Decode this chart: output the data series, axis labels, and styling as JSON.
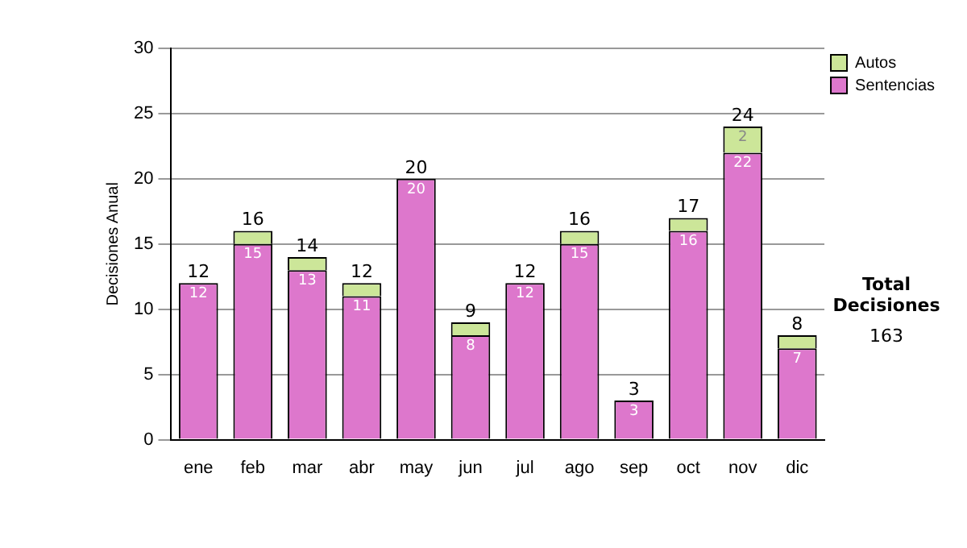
{
  "chart_data": {
    "type": "bar",
    "stacked": true,
    "ylabel": "Decisiones Anual",
    "categories": [
      "ene",
      "feb",
      "mar",
      "abr",
      "may",
      "jun",
      "jul",
      "ago",
      "sep",
      "oct",
      "nov",
      "dic"
    ],
    "series": [
      {
        "name": "Sentencias",
        "color": "#dd77cc",
        "values": [
          12,
          15,
          13,
          11,
          20,
          8,
          12,
          15,
          3,
          16,
          22,
          7
        ],
        "value_labels": [
          "12",
          "15",
          "13",
          "11",
          "20",
          "8",
          "12",
          "15",
          "3",
          "16",
          "22",
          "7"
        ]
      },
      {
        "name": "Autos",
        "color": "#cce699",
        "values": [
          0,
          1,
          1,
          1,
          0,
          1,
          0,
          1,
          0,
          1,
          2,
          1
        ],
        "value_labels": [
          null,
          null,
          null,
          null,
          null,
          null,
          null,
          null,
          null,
          null,
          "2",
          null
        ]
      }
    ],
    "totals": [
      "12",
      "16",
      "14",
      "12",
      "20",
      "9",
      "12",
      "16",
      "3",
      "17",
      "24",
      "8"
    ],
    "ylim": [
      0,
      30
    ],
    "yticks": [
      0,
      5,
      10,
      15,
      20,
      25,
      30
    ],
    "grid": "y",
    "legend": "right",
    "annotations": [
      "Total Decisiones",
      "163"
    ]
  }
}
